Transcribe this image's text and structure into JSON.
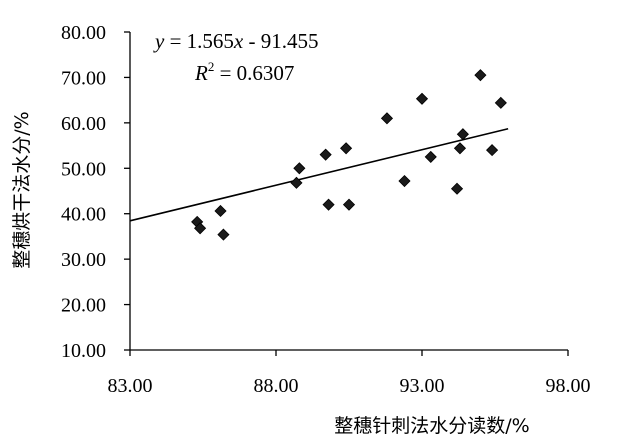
{
  "chart_data": {
    "type": "scatter",
    "xlabel": "整穗针刺法水分读数/%",
    "ylabel": "整穗烘干法水分/%",
    "xlim": [
      83.0,
      98.0
    ],
    "ylim": [
      10.0,
      80.0
    ],
    "x_ticks": [
      "83.00",
      "88.00",
      "93.00",
      "98.00"
    ],
    "y_ticks": [
      "10.00",
      "20.00",
      "30.00",
      "40.00",
      "50.00",
      "60.00",
      "70.00",
      "80.00"
    ],
    "points": [
      {
        "x": 85.3,
        "y": 38.2
      },
      {
        "x": 85.4,
        "y": 36.8
      },
      {
        "x": 86.1,
        "y": 40.6
      },
      {
        "x": 86.2,
        "y": 35.4
      },
      {
        "x": 88.7,
        "y": 46.8
      },
      {
        "x": 88.8,
        "y": 50.0
      },
      {
        "x": 89.7,
        "y": 53.0
      },
      {
        "x": 89.8,
        "y": 42.0
      },
      {
        "x": 90.4,
        "y": 54.4
      },
      {
        "x": 90.5,
        "y": 42.0
      },
      {
        "x": 91.8,
        "y": 61.0
      },
      {
        "x": 92.4,
        "y": 47.2
      },
      {
        "x": 93.0,
        "y": 65.3
      },
      {
        "x": 93.3,
        "y": 52.5
      },
      {
        "x": 94.2,
        "y": 45.5
      },
      {
        "x": 94.3,
        "y": 54.4
      },
      {
        "x": 94.4,
        "y": 57.5
      },
      {
        "x": 95.0,
        "y": 70.5
      },
      {
        "x": 95.4,
        "y": 54.0
      },
      {
        "x": 95.7,
        "y": 64.4
      }
    ],
    "trendline": {
      "slope": 1.565,
      "intercept": -91.455
    },
    "equation_y": "y",
    "equation_rest": " = 1.565",
    "equation_x": "x",
    "equation_tail": " - 91.455",
    "r2_label": "R",
    "r2_sup": "2",
    "r2_value": " = 0.6307",
    "grid": false,
    "legend": "none",
    "marker_color": "#1a1a1a",
    "line_color": "#000000"
  }
}
